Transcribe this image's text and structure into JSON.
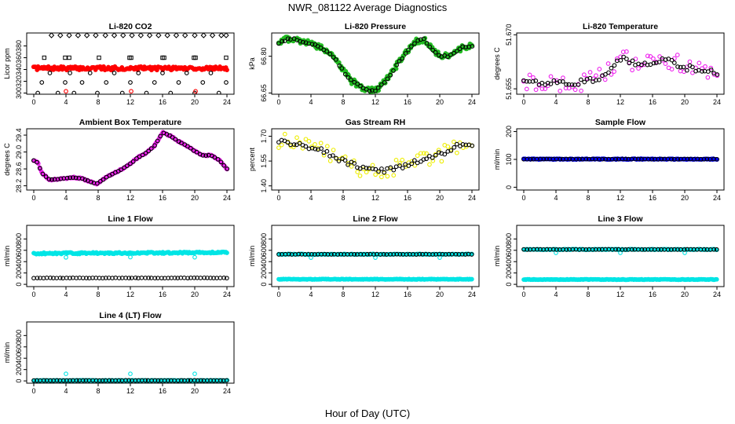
{
  "figure": {
    "title": "NWR_081122  Average Diagnostics",
    "xlabel": "Hour of Day (UTC)"
  },
  "chart_data": [
    {
      "type": "scatter",
      "title": "Li-820 CO2",
      "ylabel": "Licor ppm",
      "xlim": [
        0,
        24
      ],
      "xticks": [
        0,
        4,
        8,
        12,
        16,
        20,
        24
      ],
      "ylim": [
        298,
        402
      ],
      "yticks": [
        300,
        320,
        340,
        360,
        380
      ],
      "series": [
        {
          "color": "#ff0000",
          "shape": "filled",
          "style": "band",
          "x": [
            0,
            24
          ],
          "values": [
            342,
            342
          ],
          "spread": 3
        },
        {
          "color": "#000000",
          "shape": "square",
          "x": [
            1.3,
            3.9,
            4.4,
            8.1,
            11.9,
            12.1,
            16.0,
            16.2,
            19.9,
            20.1,
            23.9
          ],
          "values": [
            360,
            360,
            360,
            360,
            360,
            360,
            360,
            360,
            360,
            360,
            360
          ]
        },
        {
          "color": "#000000",
          "shape": "diamond",
          "x": [
            2.2,
            3.3,
            4.4,
            5.5,
            6.6,
            7.7,
            8.9,
            10.0,
            11.1,
            12.2,
            13.3,
            14.4,
            15.5,
            16.6,
            17.7,
            18.8,
            20.0,
            21.1,
            22.2,
            23.3,
            23.9
          ],
          "values": [
            398,
            398,
            398,
            398,
            398,
            398,
            398,
            398,
            398,
            398,
            398,
            398,
            398,
            398,
            398,
            398,
            398,
            398,
            398,
            398,
            398
          ]
        },
        {
          "color": "#000000",
          "shape": "circle",
          "x": [
            0.5,
            1.0,
            2.0,
            3.0,
            3.9,
            4.5,
            5.0,
            6.0,
            7.0,
            7.9,
            9.0,
            10.0,
            11.0,
            12.0,
            13.0,
            14.0,
            15.0,
            16.0,
            17.0,
            18.0,
            19.0,
            20.0,
            21.0,
            22.0,
            23.0,
            23.9
          ],
          "values": [
            300,
            318,
            334,
            300,
            318,
            334,
            300,
            318,
            334,
            300,
            318,
            334,
            300,
            318,
            334,
            300,
            318,
            334,
            300,
            318,
            334,
            300,
            318,
            334,
            300,
            318
          ]
        },
        {
          "color": "#ff0000",
          "shape": "circle",
          "x": [
            4.0,
            12.1,
            20.1
          ],
          "values": [
            303,
            303,
            303
          ]
        }
      ]
    },
    {
      "type": "scatter",
      "title": "Li-820 Pressure",
      "ylabel": "kPa",
      "xlim": [
        0,
        24
      ],
      "xticks": [
        0,
        4,
        8,
        12,
        16,
        20,
        24
      ],
      "ylim": [
        66.645,
        66.895
      ],
      "yticks": [
        66.65,
        66.8
      ],
      "series": [
        {
          "color": "#22bb22",
          "shape": "filled",
          "style": "wave",
          "x": [
            0,
            1,
            2,
            3,
            4,
            5,
            6,
            7,
            8,
            9,
            10,
            11,
            12,
            13,
            14,
            15,
            16,
            17,
            18,
            19,
            20,
            21,
            22,
            23,
            24
          ],
          "values": [
            66.85,
            66.87,
            66.87,
            66.86,
            66.85,
            66.84,
            66.82,
            66.79,
            66.74,
            66.7,
            66.68,
            66.66,
            66.66,
            66.69,
            66.73,
            66.78,
            66.82,
            66.86,
            66.87,
            66.83,
            66.8,
            66.8,
            66.82,
            66.84,
            66.84
          ],
          "spread": 0.012
        },
        {
          "color": "#000000",
          "shape": "circle",
          "style": "wave",
          "x": [
            0,
            1,
            2,
            3,
            4,
            5,
            6,
            7,
            8,
            9,
            10,
            11,
            12,
            13,
            14,
            15,
            16,
            17,
            18,
            19,
            20,
            21,
            22,
            23,
            24
          ],
          "values": [
            66.85,
            66.87,
            66.87,
            66.86,
            66.85,
            66.84,
            66.82,
            66.79,
            66.74,
            66.7,
            66.68,
            66.66,
            66.66,
            66.69,
            66.73,
            66.78,
            66.82,
            66.86,
            66.87,
            66.83,
            66.8,
            66.8,
            66.82,
            66.84,
            66.84
          ],
          "spread": 0.003
        }
      ]
    },
    {
      "type": "scatter",
      "title": "Li-820 Temperature",
      "ylabel": "degrees C",
      "xlim": [
        0,
        24
      ],
      "xticks": [
        0,
        4,
        8,
        12,
        16,
        20,
        24
      ],
      "ylim": [
        51.6535,
        51.6705
      ],
      "yticks": [
        51.655,
        51.67
      ],
      "series": [
        {
          "color": "#ee22ee",
          "shape": "circle",
          "style": "wave",
          "x": [
            0,
            2,
            4,
            6,
            8,
            10,
            12,
            14,
            16,
            18,
            20,
            22,
            24
          ],
          "values": [
            51.657,
            51.6565,
            51.6565,
            51.6567,
            51.657,
            51.6585,
            51.6635,
            51.6622,
            51.6625,
            51.663,
            51.661,
            51.66,
            51.6595
          ],
          "spread": 0.0025
        },
        {
          "color": "#000000",
          "shape": "circle",
          "style": "wave",
          "x": [
            0,
            2,
            4,
            6,
            8,
            10,
            12,
            14,
            16,
            18,
            20,
            22,
            24
          ],
          "values": [
            51.657,
            51.6565,
            51.6565,
            51.6567,
            51.657,
            51.6585,
            51.6635,
            51.6622,
            51.6625,
            51.663,
            51.661,
            51.66,
            51.6595
          ],
          "spread": 0.0008
        }
      ]
    },
    {
      "type": "scatter",
      "title": "Ambient Box Temperature",
      "ylabel": "degrees C",
      "xlim": [
        0,
        24
      ],
      "xticks": [
        0,
        4,
        8,
        12,
        16,
        20,
        24
      ],
      "ylim": [
        28.1,
        29.55
      ],
      "yticks": [
        28.2,
        28.6,
        29.0,
        29.4
      ],
      "series": [
        {
          "color": "#ee22ee",
          "shape": "filled",
          "style": "wave",
          "x": [
            0,
            0.5,
            1,
            2,
            3,
            4,
            5,
            6,
            7,
            7.8,
            9,
            10,
            11,
            12,
            13,
            14,
            15,
            16,
            17,
            18,
            19,
            20,
            21,
            22,
            23,
            24
          ],
          "values": [
            28.8,
            28.75,
            28.5,
            28.34,
            28.36,
            28.38,
            28.4,
            28.37,
            28.3,
            28.24,
            28.4,
            28.5,
            28.6,
            28.72,
            28.88,
            28.98,
            29.15,
            29.46,
            29.38,
            29.25,
            29.15,
            29.02,
            28.92,
            28.92,
            28.82,
            28.6
          ],
          "spread": 0.015
        },
        {
          "color": "#000000",
          "shape": "circle",
          "style": "wave",
          "x": [
            0,
            0.5,
            1,
            2,
            3,
            4,
            5,
            6,
            7,
            7.8,
            9,
            10,
            11,
            12,
            13,
            14,
            15,
            16,
            17,
            18,
            19,
            20,
            21,
            22,
            23,
            24
          ],
          "values": [
            28.8,
            28.75,
            28.5,
            28.34,
            28.36,
            28.38,
            28.4,
            28.37,
            28.3,
            28.24,
            28.4,
            28.5,
            28.6,
            28.72,
            28.88,
            28.98,
            29.15,
            29.46,
            29.38,
            29.25,
            29.15,
            29.02,
            28.92,
            28.92,
            28.82,
            28.6
          ],
          "spread": 0.005
        }
      ]
    },
    {
      "type": "scatter",
      "title": "Gas Stream RH",
      "ylabel": "percent",
      "xlim": [
        0,
        24
      ],
      "xticks": [
        0,
        4,
        8,
        12,
        16,
        20,
        24
      ],
      "ylim": [
        1.375,
        1.745
      ],
      "yticks": [
        1.4,
        1.55,
        1.7
      ],
      "series": [
        {
          "color": "#eeee00",
          "shape": "circle",
          "style": "wave",
          "x": [
            0,
            2,
            4,
            6,
            8,
            10,
            12,
            14,
            16,
            18,
            20,
            22,
            24
          ],
          "values": [
            1.67,
            1.66,
            1.63,
            1.6,
            1.55,
            1.51,
            1.49,
            1.5,
            1.53,
            1.56,
            1.59,
            1.64,
            1.65
          ],
          "spread": 0.05
        },
        {
          "color": "#000000",
          "shape": "circle",
          "style": "wave",
          "x": [
            0,
            2,
            4,
            6,
            8,
            10,
            12,
            14,
            16,
            18,
            20,
            22,
            24
          ],
          "values": [
            1.67,
            1.66,
            1.63,
            1.6,
            1.55,
            1.51,
            1.49,
            1.5,
            1.53,
            1.56,
            1.59,
            1.64,
            1.65
          ],
          "spread": 0.015
        }
      ]
    },
    {
      "type": "scatter",
      "title": "Sample Flow",
      "ylabel": "ml/min",
      "xlim": [
        0,
        24
      ],
      "xticks": [
        0,
        4,
        8,
        12,
        16,
        20,
        24
      ],
      "ylim": [
        -10,
        210
      ],
      "yticks": [
        0,
        100,
        200
      ],
      "series": [
        {
          "color": "#0000ff",
          "shape": "filled",
          "style": "band",
          "x": [
            0,
            24
          ],
          "values": [
            101,
            101
          ],
          "spread": 1.5
        },
        {
          "color": "#000000",
          "shape": "circle",
          "style": "band",
          "x": [
            0,
            24
          ],
          "values": [
            101,
            101
          ],
          "spread": 0.5
        }
      ]
    },
    {
      "type": "scatter",
      "title": "Line 1 Flow",
      "ylabel": "ml/min",
      "xlim": [
        0,
        24
      ],
      "xticks": [
        0,
        4,
        8,
        12,
        16,
        20,
        24
      ],
      "ylim": [
        -40,
        1040
      ],
      "yticks": [
        0,
        200,
        400,
        600,
        800
      ],
      "series": [
        {
          "color": "#00e5e5",
          "shape": "filled",
          "style": "band",
          "x": [
            0,
            24
          ],
          "values": [
            545,
            560
          ],
          "spread": 14
        },
        {
          "color": "#00e5e5",
          "shape": "circle",
          "x": [
            4.0,
            12.0,
            20.0
          ],
          "values": [
            475,
            480,
            478
          ]
        },
        {
          "color": "#000000",
          "shape": "circle",
          "style": "band",
          "x": [
            0,
            24
          ],
          "values": [
            112,
            112
          ],
          "spread": 3
        }
      ]
    },
    {
      "type": "scatter",
      "title": "Line 2 Flow",
      "ylabel": "ml/min",
      "xlim": [
        0,
        24
      ],
      "xticks": [
        0,
        4,
        8,
        12,
        16,
        20,
        24
      ],
      "ylim": [
        -40,
        1040
      ],
      "yticks": [
        0,
        200,
        400,
        600,
        800
      ],
      "series": [
        {
          "color": "#00e5e5",
          "shape": "filled",
          "style": "band",
          "x": [
            0,
            24
          ],
          "values": [
            90,
            90
          ],
          "spread": 5
        },
        {
          "color": "#00e5e5",
          "shape": "filled",
          "style": "band",
          "x": [
            0,
            24
          ],
          "values": [
            530,
            530
          ],
          "spread": 6
        },
        {
          "color": "#00e5e5",
          "shape": "circle",
          "x": [
            4.0,
            12.0,
            20.0
          ],
          "values": [
            470,
            470,
            470
          ]
        },
        {
          "color": "#000000",
          "shape": "circle",
          "style": "band",
          "x": [
            0,
            24
          ],
          "values": [
            530,
            530
          ],
          "spread": 3
        }
      ]
    },
    {
      "type": "scatter",
      "title": "Line 3 Flow",
      "ylabel": "ml/min",
      "xlim": [
        0,
        24
      ],
      "xticks": [
        0,
        4,
        8,
        12,
        16,
        20,
        24
      ],
      "ylim": [
        -40,
        1040
      ],
      "yticks": [
        0,
        200,
        400,
        600,
        800
      ],
      "series": [
        {
          "color": "#00e5e5",
          "shape": "filled",
          "style": "band",
          "x": [
            0,
            24
          ],
          "values": [
            85,
            85
          ],
          "spread": 5
        },
        {
          "color": "#00e5e5",
          "shape": "filled",
          "style": "band",
          "x": [
            0,
            24
          ],
          "values": [
            615,
            615
          ],
          "spread": 6
        },
        {
          "color": "#00e5e5",
          "shape": "circle",
          "x": [
            4.0,
            12.0,
            20.0
          ],
          "values": [
            555,
            555,
            555
          ]
        },
        {
          "color": "#000000",
          "shape": "circle",
          "style": "band",
          "x": [
            0,
            24
          ],
          "values": [
            615,
            615
          ],
          "spread": 3
        }
      ]
    },
    {
      "type": "scatter",
      "title": "Line 4 (LT) Flow",
      "ylabel": "ml/min",
      "xlim": [
        0,
        24
      ],
      "xticks": [
        0,
        4,
        8,
        12,
        16,
        20,
        24
      ],
      "ylim": [
        -40,
        1040
      ],
      "yticks": [
        0,
        200,
        400,
        600,
        800
      ],
      "series": [
        {
          "color": "#00e5e5",
          "shape": "filled",
          "style": "band",
          "x": [
            0,
            24
          ],
          "values": [
            8,
            8
          ],
          "spread": 4
        },
        {
          "color": "#00e5e5",
          "shape": "circle",
          "x": [
            4.0,
            12.0,
            20.0
          ],
          "values": [
            125,
            125,
            125
          ]
        },
        {
          "color": "#000000",
          "shape": "circle",
          "style": "band",
          "x": [
            0,
            24
          ],
          "values": [
            8,
            8
          ],
          "spread": 2
        }
      ]
    }
  ]
}
